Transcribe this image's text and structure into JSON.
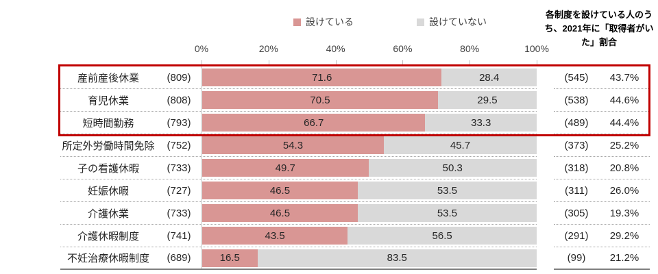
{
  "chart_data": {
    "type": "bar",
    "orientation": "horizontal",
    "stacked": true,
    "title": "",
    "categories": [
      "産前産後休業",
      "育児休業",
      "短時間勤務",
      "所定外労働時間免除",
      "子の看護休暇",
      "妊娠休暇",
      "介護休業",
      "介護休暇制度",
      "不妊治療休暇制度"
    ],
    "category_counts": [
      "(809)",
      "(808)",
      "(793)",
      "(752)",
      "(733)",
      "(727)",
      "(733)",
      "(741)",
      "(689)"
    ],
    "series": [
      {
        "name": "設けている",
        "color": "#d99694",
        "values": [
          71.6,
          70.5,
          66.7,
          54.3,
          49.7,
          46.5,
          46.5,
          43.5,
          16.5
        ]
      },
      {
        "name": "設けていない",
        "color": "#d9d9d9",
        "values": [
          28.4,
          29.5,
          33.3,
          45.7,
          50.3,
          53.5,
          53.5,
          56.5,
          83.5
        ]
      }
    ],
    "right_column": {
      "header": "各制度を設けている人のうち、2021年に「取得者がいた」割合",
      "counts": [
        "(545)",
        "(538)",
        "(489)",
        "(373)",
        "(318)",
        "(311)",
        "(305)",
        "(291)",
        "(99)"
      ],
      "percentages": [
        "43.7%",
        "44.6%",
        "44.4%",
        "25.2%",
        "20.8%",
        "26.0%",
        "19.3%",
        "29.2%",
        "21.2%"
      ]
    },
    "xlim": [
      0,
      100
    ],
    "x_ticks": [
      "0%",
      "20%",
      "40%",
      "60%",
      "80%",
      "100%"
    ],
    "legend_position": "top",
    "grid": false,
    "highlighted_rows": [
      0,
      1,
      2
    ],
    "highlight_color": "#c00000"
  }
}
